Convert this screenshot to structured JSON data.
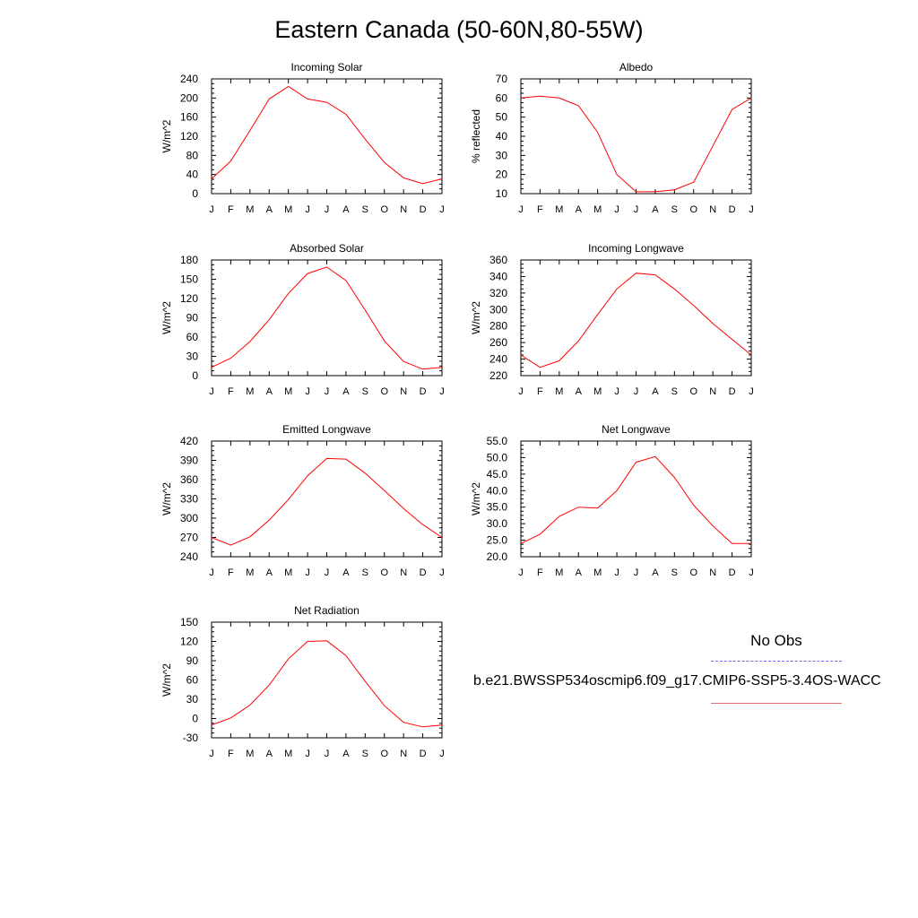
{
  "title": "Eastern Canada (50-60N,80-55W)",
  "legend": {
    "obs_label": "No Obs",
    "case_label": "b.e21.BWSSP534oscmip6.f09_g17.CMIP6-SSP5-3.4OS-WACC",
    "series_color": "#ff0000",
    "obs_color": "#6a6af0"
  },
  "chart_data": [
    {
      "type": "line",
      "title": "Incoming Solar",
      "ylabel": "W/m^2",
      "x": [
        "J",
        "F",
        "M",
        "A",
        "M",
        "J",
        "J",
        "A",
        "S",
        "O",
        "N",
        "D",
        "J"
      ],
      "ylim": [
        0,
        240
      ],
      "yticks": [
        "0",
        "40",
        "80",
        "120",
        "160",
        "200",
        "240"
      ],
      "values": [
        31,
        68,
        132,
        198,
        224,
        198,
        191,
        166,
        114,
        65,
        33,
        21,
        31
      ]
    },
    {
      "type": "line",
      "title": "Albedo",
      "ylabel": "% reflected",
      "x": [
        "J",
        "F",
        "M",
        "A",
        "M",
        "J",
        "J",
        "A",
        "S",
        "O",
        "N",
        "D",
        "J"
      ],
      "ylim": [
        10,
        70
      ],
      "yticks": [
        "10",
        "20",
        "30",
        "40",
        "50",
        "60",
        "70"
      ],
      "values": [
        60,
        61,
        60,
        56,
        42,
        20,
        11,
        11,
        12,
        16,
        35,
        54,
        60
      ]
    },
    {
      "type": "line",
      "title": "Absorbed Solar",
      "ylabel": "W/m^2",
      "x": [
        "J",
        "F",
        "M",
        "A",
        "M",
        "J",
        "J",
        "A",
        "S",
        "O",
        "N",
        "D",
        "J"
      ],
      "ylim": [
        0,
        180
      ],
      "yticks": [
        "0",
        "30",
        "60",
        "90",
        "120",
        "150",
        "180"
      ],
      "values": [
        13,
        27,
        53,
        87,
        128,
        159,
        169,
        148,
        102,
        54,
        22,
        10,
        13
      ]
    },
    {
      "type": "line",
      "title": "Incoming Longwave",
      "ylabel": "W/m^2",
      "x": [
        "J",
        "F",
        "M",
        "A",
        "M",
        "J",
        "J",
        "A",
        "S",
        "O",
        "N",
        "D",
        "J"
      ],
      "ylim": [
        220,
        360
      ],
      "yticks": [
        "220",
        "240",
        "260",
        "280",
        "300",
        "320",
        "340",
        "360"
      ],
      "values": [
        245,
        230,
        238,
        262,
        294,
        325,
        344,
        342,
        325,
        305,
        283,
        264,
        245
      ]
    },
    {
      "type": "line",
      "title": "Emitted Longwave",
      "ylabel": "W/m^2",
      "x": [
        "J",
        "F",
        "M",
        "A",
        "M",
        "J",
        "J",
        "A",
        "S",
        "O",
        "N",
        "D",
        "J"
      ],
      "ylim": [
        240,
        420
      ],
      "yticks": [
        "240",
        "270",
        "300",
        "330",
        "360",
        "390",
        "420"
      ],
      "values": [
        270,
        258,
        271,
        297,
        329,
        366,
        393,
        392,
        370,
        343,
        315,
        290,
        270
      ]
    },
    {
      "type": "line",
      "title": "Net Longwave",
      "ylabel": "W/m^2",
      "x": [
        "J",
        "F",
        "M",
        "A",
        "M",
        "J",
        "J",
        "A",
        "S",
        "O",
        "N",
        "D",
        "J"
      ],
      "ylim": [
        20,
        55
      ],
      "yticks": [
        "20.0",
        "25.0",
        "30.0",
        "35.0",
        "40.0",
        "45.0",
        "50.0",
        "55.0"
      ],
      "values": [
        24,
        26.8,
        32.2,
        35,
        34.7,
        40,
        48.6,
        50.3,
        44,
        35.6,
        29.3,
        24,
        24
      ]
    },
    {
      "type": "line",
      "title": "Net Radiation",
      "ylabel": "W/m^2",
      "x": [
        "J",
        "F",
        "M",
        "A",
        "M",
        "J",
        "J",
        "A",
        "S",
        "O",
        "N",
        "D",
        "J"
      ],
      "ylim": [
        -30,
        150
      ],
      "yticks": [
        "-30",
        "0",
        "30",
        "60",
        "90",
        "120",
        "150"
      ],
      "values": [
        -10,
        1,
        21,
        52,
        93,
        120,
        121,
        98,
        58,
        20,
        -6,
        -13,
        -10
      ]
    }
  ]
}
